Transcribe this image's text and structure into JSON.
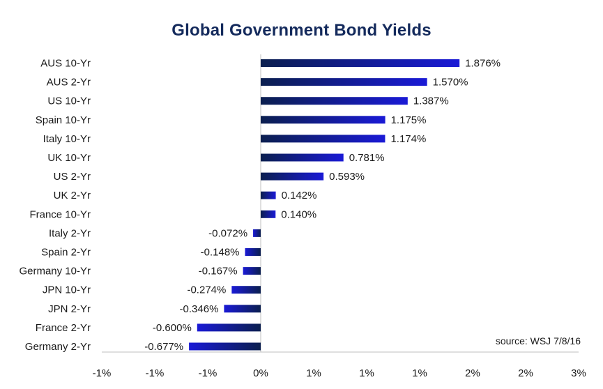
{
  "chart_data": {
    "type": "bar",
    "orientation": "horizontal",
    "title": "Global Government Bond Yields",
    "xlabel": "",
    "ylabel": "",
    "xlim": [
      -1.5,
      3.0
    ],
    "x_ticks": [
      -1.5,
      -1.0,
      -0.5,
      0.0,
      0.5,
      1.0,
      1.5,
      2.0,
      2.5,
      3.0
    ],
    "x_tick_labels": [
      "-1%",
      "-1%",
      "-1%",
      "0%",
      "1%",
      "1%",
      "1%",
      "2%",
      "2%",
      "3%"
    ],
    "grid": false,
    "legend": "none",
    "categories": [
      "AUS 10-Yr",
      "AUS 2-Yr",
      "US 10-Yr",
      "Spain 10-Yr",
      "Italy 10-Yr",
      "UK 10-Yr",
      "US 2-Yr",
      "UK 2-Yr",
      "France 10-Yr",
      "Italy 2-Yr",
      "Spain 2-Yr",
      "Germany 10-Yr",
      "JPN 10-Yr",
      "JPN 2-Yr",
      "France 2-Yr",
      "Germany 2-Yr"
    ],
    "values": [
      1.876,
      1.57,
      1.387,
      1.175,
      1.174,
      0.781,
      0.593,
      0.142,
      0.14,
      -0.072,
      -0.148,
      -0.167,
      -0.274,
      -0.346,
      -0.6,
      -0.677
    ],
    "value_labels": [
      "1.876%",
      "1.570%",
      "1.387%",
      "1.175%",
      "1.174%",
      "0.781%",
      "0.593%",
      "0.142%",
      "0.140%",
      "-0.072%",
      "-0.148%",
      "-0.167%",
      "-0.274%",
      "-0.346%",
      "-0.600%",
      "-0.677%"
    ],
    "bar_color_dark": "#0b1f4f",
    "bar_color_light": "#1a1ad6",
    "axis_color": "#bfbfbf",
    "title_color": "#142a5c",
    "annotation": "source: WSJ 7/8/16"
  }
}
